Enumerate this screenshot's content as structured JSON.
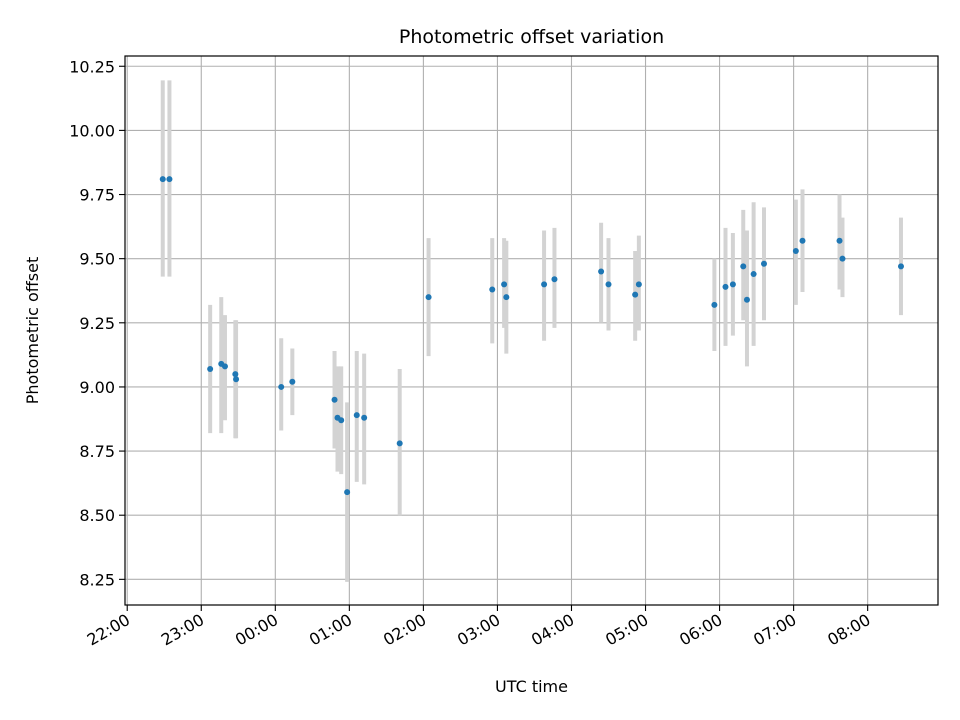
{
  "chart_data": {
    "type": "scatter",
    "title": "Photometric offset variation",
    "xlabel": "UTC time",
    "ylabel": "Photometric offset",
    "grid": true,
    "x_unit": "hours",
    "xlim": [
      21.97,
      32.95
    ],
    "ylim": [
      8.15,
      10.29
    ],
    "x_ticks": [
      {
        "value": 22,
        "label": "22:00"
      },
      {
        "value": 23,
        "label": "23:00"
      },
      {
        "value": 24,
        "label": "00:00"
      },
      {
        "value": 25,
        "label": "01:00"
      },
      {
        "value": 26,
        "label": "02:00"
      },
      {
        "value": 27,
        "label": "03:00"
      },
      {
        "value": 28,
        "label": "04:00"
      },
      {
        "value": 29,
        "label": "05:00"
      },
      {
        "value": 30,
        "label": "06:00"
      },
      {
        "value": 31,
        "label": "07:00"
      },
      {
        "value": 32,
        "label": "08:00"
      }
    ],
    "y_ticks": [
      {
        "value": 8.25,
        "label": "8.25"
      },
      {
        "value": 8.5,
        "label": "8.50"
      },
      {
        "value": 8.75,
        "label": "8.75"
      },
      {
        "value": 9.0,
        "label": "9.00"
      },
      {
        "value": 9.25,
        "label": "9.25"
      },
      {
        "value": 9.5,
        "label": "9.50"
      },
      {
        "value": 9.75,
        "label": "9.75"
      },
      {
        "value": 10.0,
        "label": "10.00"
      },
      {
        "value": 10.25,
        "label": "10.25"
      }
    ],
    "points": [
      {
        "x": 22.48,
        "y": 9.81,
        "ylow": 9.43,
        "yhigh": 10.195
      },
      {
        "x": 22.57,
        "y": 9.81,
        "ylow": 9.43,
        "yhigh": 10.195
      },
      {
        "x": 23.12,
        "y": 9.07,
        "ylow": 8.82,
        "yhigh": 9.32
      },
      {
        "x": 23.27,
        "y": 9.09,
        "ylow": 8.82,
        "yhigh": 9.35
      },
      {
        "x": 23.32,
        "y": 9.08,
        "ylow": 8.87,
        "yhigh": 9.28
      },
      {
        "x": 23.46,
        "y": 9.05,
        "ylow": 8.8,
        "yhigh": 9.26
      },
      {
        "x": 23.47,
        "y": 9.03,
        "ylow": 8.8,
        "yhigh": 9.26
      },
      {
        "x": 24.08,
        "y": 9.0,
        "ylow": 8.83,
        "yhigh": 9.19
      },
      {
        "x": 24.23,
        "y": 9.02,
        "ylow": 8.89,
        "yhigh": 9.15
      },
      {
        "x": 24.8,
        "y": 8.95,
        "ylow": 8.76,
        "yhigh": 9.14
      },
      {
        "x": 24.84,
        "y": 8.88,
        "ylow": 8.67,
        "yhigh": 9.08
      },
      {
        "x": 24.89,
        "y": 8.87,
        "ylow": 8.66,
        "yhigh": 9.08
      },
      {
        "x": 24.97,
        "y": 8.59,
        "ylow": 8.24,
        "yhigh": 8.94
      },
      {
        "x": 25.1,
        "y": 8.89,
        "ylow": 8.63,
        "yhigh": 9.14
      },
      {
        "x": 25.2,
        "y": 8.88,
        "ylow": 8.62,
        "yhigh": 9.13
      },
      {
        "x": 25.68,
        "y": 8.78,
        "ylow": 8.5,
        "yhigh": 9.07
      },
      {
        "x": 26.07,
        "y": 9.35,
        "ylow": 9.12,
        "yhigh": 9.58
      },
      {
        "x": 26.93,
        "y": 9.38,
        "ylow": 9.17,
        "yhigh": 9.58
      },
      {
        "x": 27.09,
        "y": 9.4,
        "ylow": 9.23,
        "yhigh": 9.58
      },
      {
        "x": 27.12,
        "y": 9.35,
        "ylow": 9.13,
        "yhigh": 9.57
      },
      {
        "x": 27.63,
        "y": 9.4,
        "ylow": 9.18,
        "yhigh": 9.61
      },
      {
        "x": 27.77,
        "y": 9.42,
        "ylow": 9.23,
        "yhigh": 9.62
      },
      {
        "x": 28.4,
        "y": 9.45,
        "ylow": 9.25,
        "yhigh": 9.64
      },
      {
        "x": 28.5,
        "y": 9.4,
        "ylow": 9.22,
        "yhigh": 9.58
      },
      {
        "x": 28.86,
        "y": 9.36,
        "ylow": 9.18,
        "yhigh": 9.53
      },
      {
        "x": 28.91,
        "y": 9.4,
        "ylow": 9.22,
        "yhigh": 9.59
      },
      {
        "x": 29.93,
        "y": 9.32,
        "ylow": 9.14,
        "yhigh": 9.5
      },
      {
        "x": 30.08,
        "y": 9.39,
        "ylow": 9.16,
        "yhigh": 9.62
      },
      {
        "x": 30.18,
        "y": 9.4,
        "ylow": 9.2,
        "yhigh": 9.6
      },
      {
        "x": 30.32,
        "y": 9.47,
        "ylow": 9.26,
        "yhigh": 9.69
      },
      {
        "x": 30.37,
        "y": 9.34,
        "ylow": 9.08,
        "yhigh": 9.61
      },
      {
        "x": 30.46,
        "y": 9.44,
        "ylow": 9.16,
        "yhigh": 9.72
      },
      {
        "x": 30.6,
        "y": 9.48,
        "ylow": 9.26,
        "yhigh": 9.7
      },
      {
        "x": 31.03,
        "y": 9.53,
        "ylow": 9.32,
        "yhigh": 9.73
      },
      {
        "x": 31.12,
        "y": 9.57,
        "ylow": 9.37,
        "yhigh": 9.77
      },
      {
        "x": 31.62,
        "y": 9.57,
        "ylow": 9.38,
        "yhigh": 9.75
      },
      {
        "x": 31.66,
        "y": 9.5,
        "ylow": 9.35,
        "yhigh": 9.66
      },
      {
        "x": 32.45,
        "y": 9.47,
        "ylow": 9.28,
        "yhigh": 9.66
      }
    ],
    "colors": {
      "marker": "#1f77b4",
      "errorbar": "#d3d3d3",
      "grid": "#b0b0b0",
      "axes": "#000000"
    }
  }
}
